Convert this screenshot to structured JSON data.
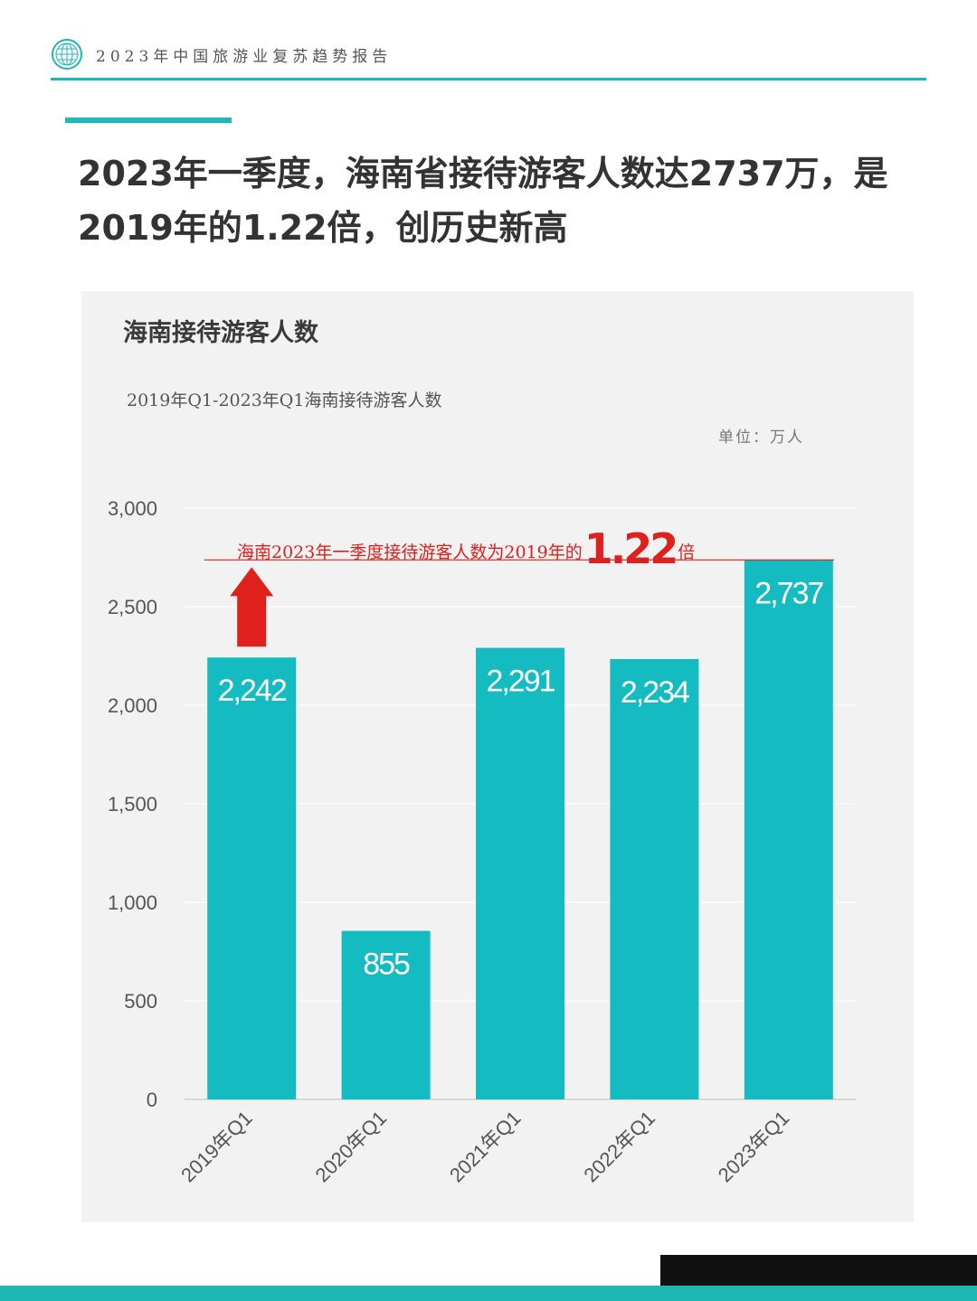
{
  "header": {
    "title": "2023年中国旅游业复苏趋势报告"
  },
  "headline": "2023年一季度，海南省接待游客人数达2737万，是2019年的1.22倍，创历史新高",
  "panel": {
    "title": "海南接待游客人数",
    "subtitle": "2019年Q1-2023年Q1海南接待游客人数",
    "unit": "单位：万人"
  },
  "annotation": {
    "prefix": "海南2023年一季度接待游客人数为2019年的",
    "value": "1.22",
    "suffix": "倍"
  },
  "colors": {
    "accent": "#1fb6b6",
    "bar": "#14bcc2",
    "highlight": "#e0201c"
  },
  "chart_data": {
    "type": "bar",
    "categories": [
      "2019年Q1",
      "2020年Q1",
      "2021年Q1",
      "2022年Q1",
      "2023年Q1"
    ],
    "values": [
      2242,
      855,
      2291,
      2234,
      2737
    ],
    "value_labels": [
      "2,242",
      "855",
      "2,291",
      "2,234",
      "2,737"
    ],
    "yticks": [
      "0",
      "500",
      "1,000",
      "1,500",
      "2,000",
      "2,500",
      "3,000"
    ],
    "ylim": [
      0,
      3000
    ],
    "grid": true,
    "reference_line": 2737
  }
}
